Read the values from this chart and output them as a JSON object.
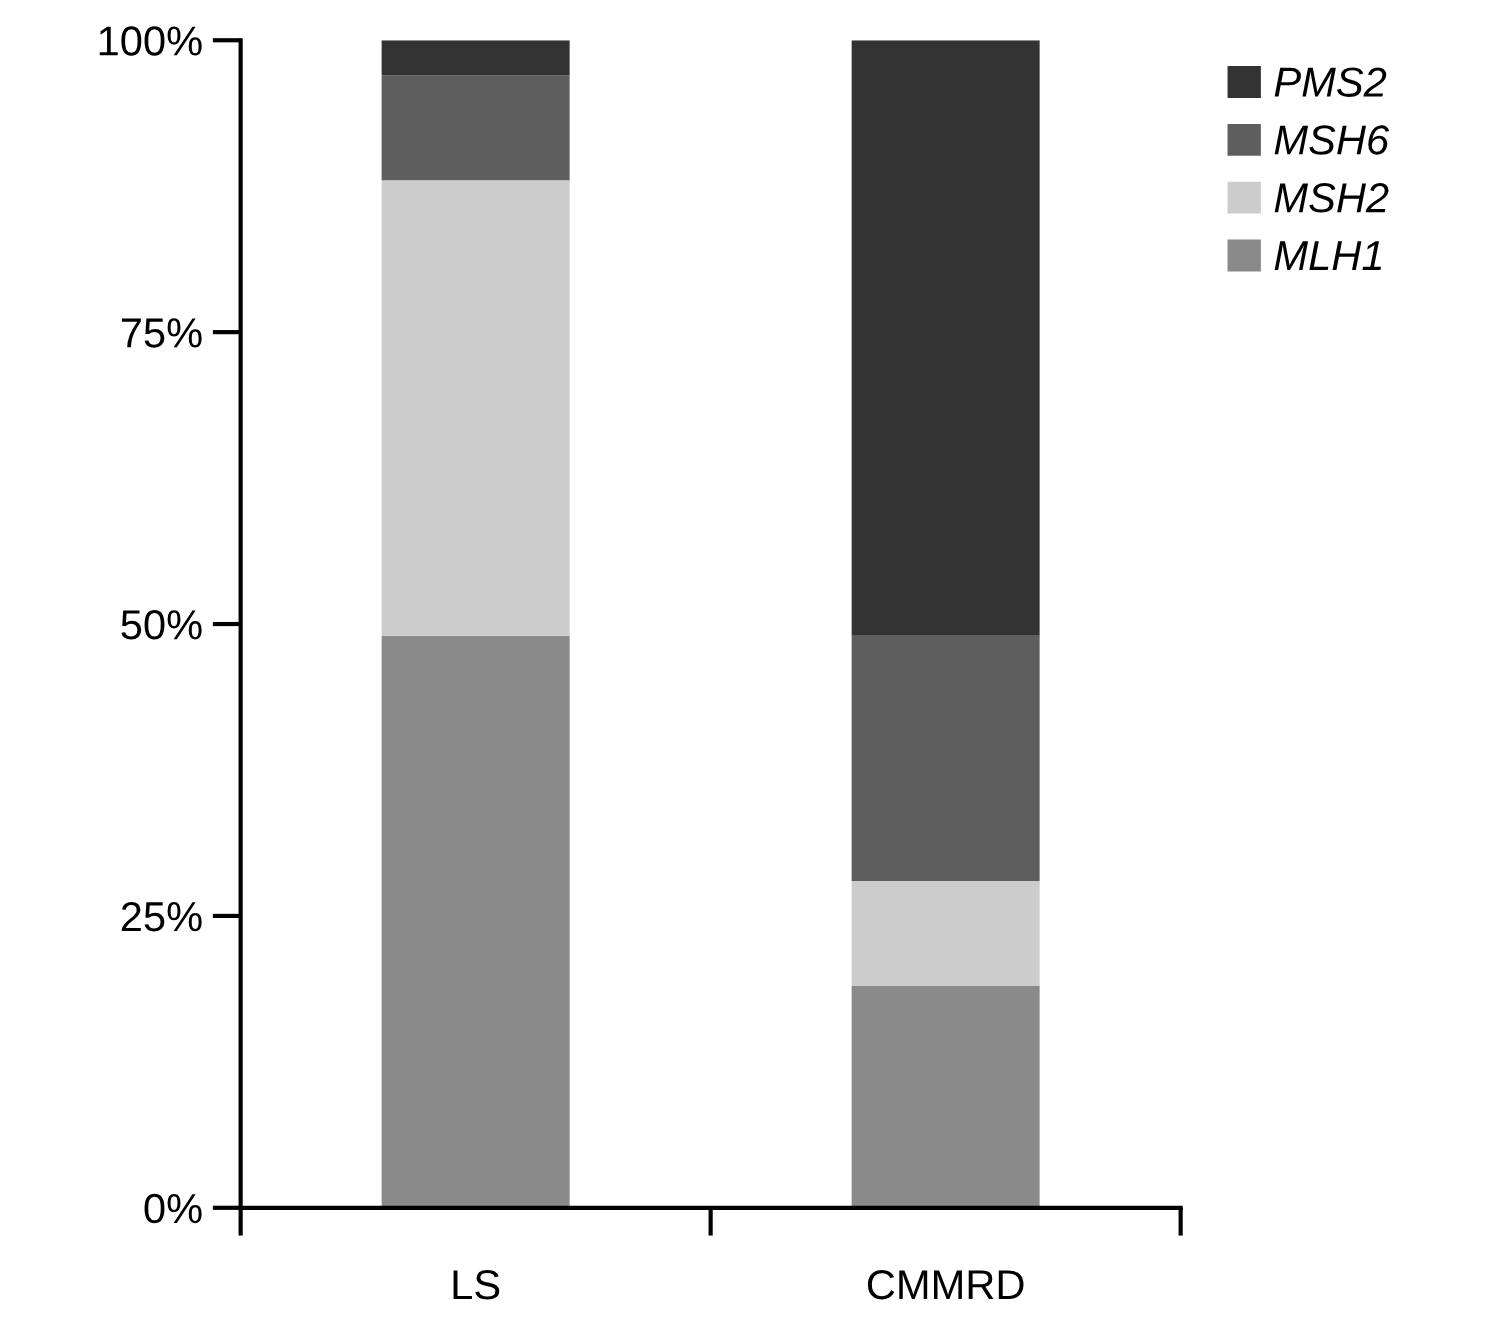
{
  "chart_data": {
    "type": "bar",
    "stacked": true,
    "categories": [
      "LS",
      "CMMRD"
    ],
    "series": [
      {
        "name": "MLH1",
        "color": "#8a8a8a",
        "values": [
          49,
          19
        ]
      },
      {
        "name": "MSH2",
        "color": "#cccccc",
        "values": [
          39,
          9
        ]
      },
      {
        "name": "MSH6",
        "color": "#5e5e5e",
        "values": [
          9,
          21
        ]
      },
      {
        "name": "PMS2",
        "color": "#333333",
        "values": [
          3,
          51
        ]
      }
    ],
    "ylim": [
      0,
      100
    ],
    "yticks": [
      {
        "value": 0,
        "label": "0%"
      },
      {
        "value": 25,
        "label": "25%"
      },
      {
        "value": 50,
        "label": "50%"
      },
      {
        "value": 75,
        "label": "75%"
      },
      {
        "value": 100,
        "label": "100%"
      }
    ],
    "grid": false,
    "legend": "top right"
  }
}
